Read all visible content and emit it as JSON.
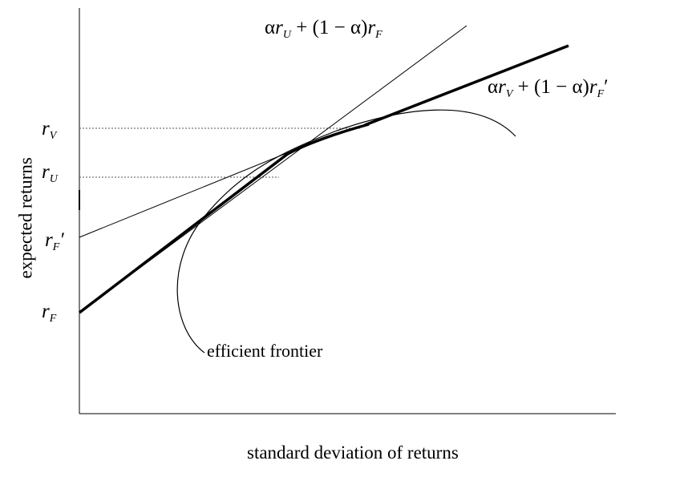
{
  "diagram": {
    "axes": {
      "xlabel": "standard deviation of returns",
      "ylabel": "expected returns"
    },
    "y_ticks": {
      "rV": {
        "base": "r",
        "sub": "V",
        "prime": ""
      },
      "rU": {
        "base": "r",
        "sub": "U",
        "prime": ""
      },
      "rF_prime": {
        "base": "r",
        "sub": "F",
        "prime": "′"
      },
      "rF": {
        "base": "r",
        "sub": "F",
        "prime": ""
      }
    },
    "curve_label": "efficient frontier",
    "line_U": {
      "alpha1": "α",
      "r1": "r",
      "sub1": "U",
      "mid": " + (1 − ",
      "alpha2": "α",
      "close": ")",
      "r2": "r",
      "sub2": "F",
      "prime": ""
    },
    "line_V": {
      "alpha1": "α",
      "r1": "r",
      "sub1": "V",
      "mid": " + (1 − ",
      "alpha2": "α",
      "close": ")",
      "r2": "r",
      "sub2": "F",
      "prime": "′"
    }
  }
}
